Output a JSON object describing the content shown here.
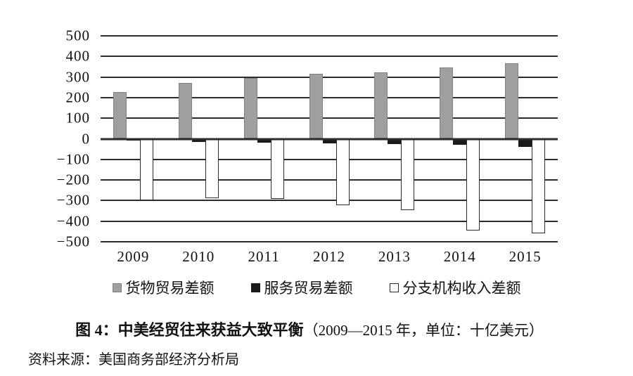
{
  "chart_data": {
    "type": "bar",
    "title": "图 4：中美经贸往来获益大致平衡",
    "title_note": "（2009—2015 年，单位：十亿美元）",
    "source": "资料来源：美国商务部经济分析局",
    "categories": [
      "2009",
      "2010",
      "2011",
      "2012",
      "2013",
      "2014",
      "2015"
    ],
    "series": [
      {
        "name": "货物贸易差额",
        "color": "#a0a0a0",
        "border": "#808080",
        "values": [
          226,
          273,
          296,
          315,
          322,
          345,
          366
        ]
      },
      {
        "name": "服务贸易差额",
        "color": "#1a1a1a",
        "border": "#1a1a1a",
        "values": [
          -8,
          -14,
          -18,
          -21,
          -26,
          -30,
          -38
        ]
      },
      {
        "name": "分支机构收入差额",
        "color": "#ffffff",
        "border": "#2c2c2c",
        "values": [
          -297,
          -287,
          -292,
          -322,
          -345,
          -445,
          -458
        ]
      }
    ],
    "ylim": [
      -500,
      500
    ],
    "y_tick_step": 100,
    "y_ticks": [
      "500",
      "400",
      "300",
      "200",
      "100",
      "0",
      "−100",
      "−200",
      "−300",
      "−400",
      "−500"
    ],
    "grid": true,
    "legend_position": "bottom"
  }
}
